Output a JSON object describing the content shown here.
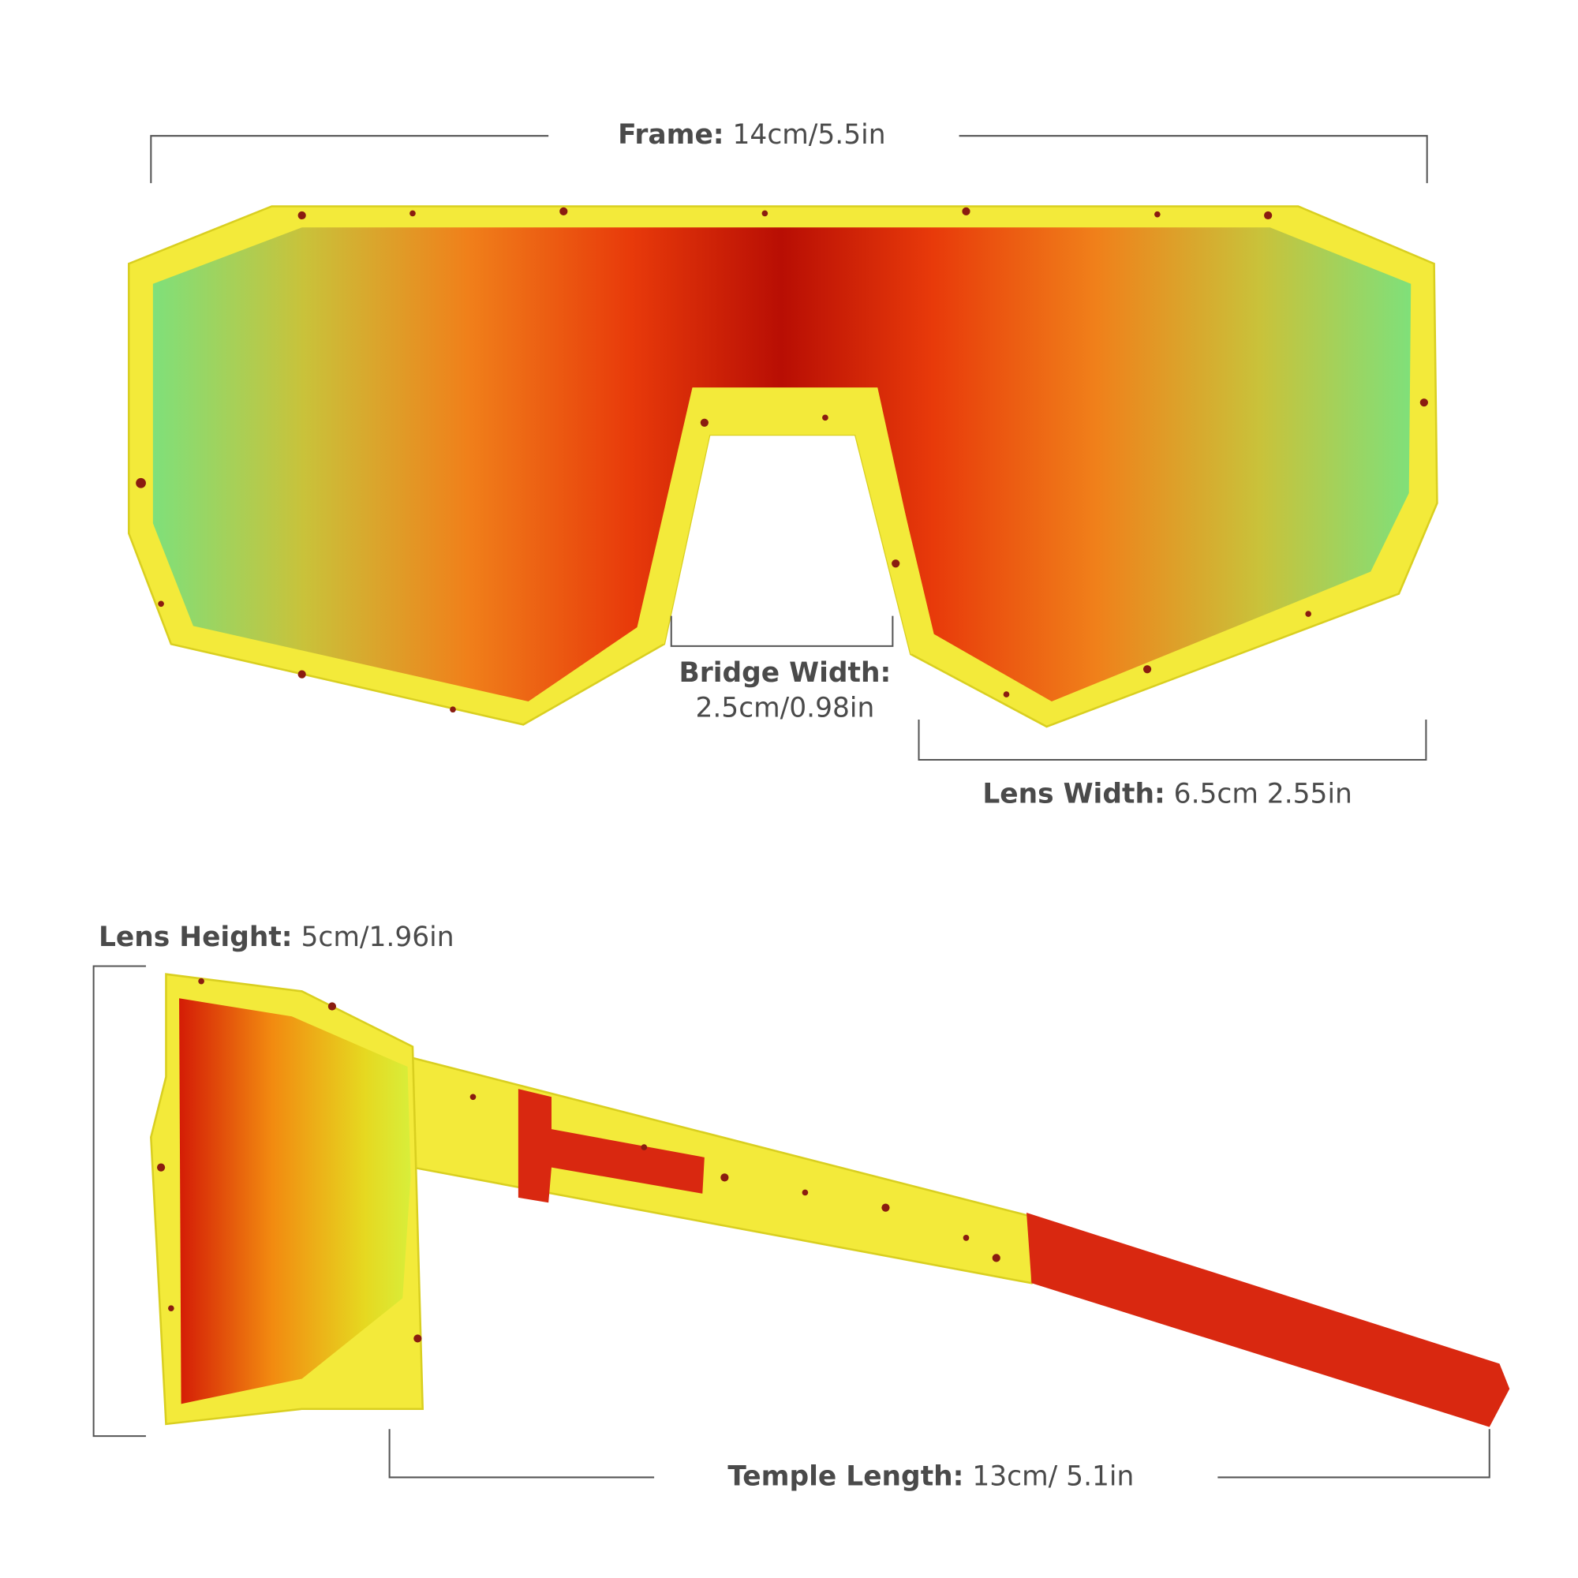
{
  "measurements": [
    {
      "label": "Frame:",
      "value": "14cm/5.5in"
    },
    {
      "label": "Bridge Width:",
      "value": "2.5cm/0.98in"
    },
    {
      "label": "Lens Width:",
      "value": "6.5cm 2.55in"
    },
    {
      "label": "Lens Height:",
      "value": "5cm/1.96in"
    },
    {
      "label": "Temple Length:",
      "value": "13cm/ 5.1in"
    }
  ]
}
